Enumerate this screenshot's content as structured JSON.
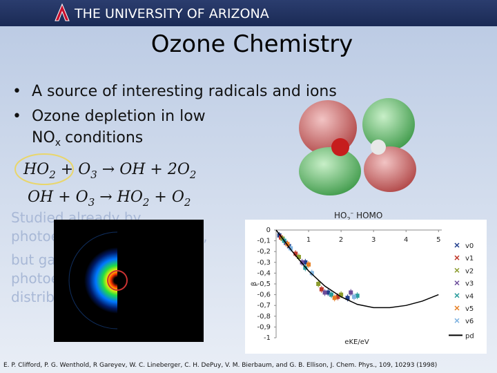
{
  "header": {
    "logo_text": "THE UNIVERSITY OF ARIZONA"
  },
  "title": "Ozone Chemistry",
  "bullets": [
    {
      "text": "A source of interesting radicals and ions"
    },
    {
      "line1": "Ozone depletion in low",
      "species": "NO",
      "subscript": "x",
      "tail": "conditions"
    }
  ],
  "equations": [
    [
      "HO",
      "2",
      " + O",
      "3",
      " → OH + 2O",
      "2"
    ],
    [
      "OH + O",
      "3",
      " → HO",
      "2",
      " + O",
      "2"
    ]
  ],
  "faded_paragraph": [
    "Studied already by",
    "photoelectron spectroscopy,",
    "but gas-phase",
    "photoelectron angular",
    "distributions"
  ],
  "orbital_label": {
    "main": "HO",
    "sub": "2",
    "sup": "–",
    "tail": "HOMO"
  },
  "citation": "E. P. Clifford, P. G. Wenthold, R Gareyev, W. C. Lineberger, C. H. DePuy, V. M. Bierbaum, and G. B. Ellison, J. Chem. Phys., 109, 10293 (1998)",
  "chart_data": {
    "type": "scatter",
    "x_label": "eKE/eV",
    "y_label": "β",
    "xlim": [
      0,
      5.1
    ],
    "ylim": [
      -1,
      0
    ],
    "xticks": [
      1,
      2,
      3,
      4,
      5
    ],
    "yticks": [
      0,
      {
        "value": -0.1,
        "label": "-0,1"
      },
      {
        "value": -0.2,
        "label": "-0,2"
      },
      {
        "value": -0.3,
        "label": "-0,3"
      },
      {
        "value": -0.4,
        "label": "-0,4"
      },
      {
        "value": -0.5,
        "label": "-0,5"
      },
      {
        "value": -0.6,
        "label": "-0,6"
      },
      {
        "value": -0.7,
        "label": "-0,7"
      },
      {
        "value": -0.8,
        "label": "-0,8"
      },
      {
        "value": -0.9,
        "label": "-0,9"
      },
      -1
    ],
    "legend": "right",
    "series": [
      {
        "name": "v0",
        "color": "#1f3d8c",
        "x": [
          0.1,
          0.4,
          0.9,
          1.6,
          2.2
        ],
        "values": [
          -0.05,
          -0.15,
          -0.3,
          -0.58,
          -0.63
        ]
      },
      {
        "name": "v1",
        "color": "#c0392b",
        "x": [
          0.15,
          0.6,
          1.4,
          1.9
        ],
        "values": [
          -0.07,
          -0.22,
          -0.55,
          -0.62
        ]
      },
      {
        "name": "v2",
        "color": "#8a9a2b",
        "x": [
          0.2,
          0.7,
          1.3,
          2.0
        ],
        "values": [
          -0.08,
          -0.25,
          -0.5,
          -0.6
        ]
      },
      {
        "name": "v3",
        "color": "#6b4c9a",
        "x": [
          0.3,
          0.8,
          1.5,
          2.3
        ],
        "values": [
          -0.12,
          -0.3,
          -0.58,
          -0.58
        ]
      },
      {
        "name": "v4",
        "color": "#2a9d9d",
        "x": [
          0.25,
          0.9,
          1.7,
          2.5
        ],
        "values": [
          -0.1,
          -0.35,
          -0.6,
          -0.61
        ]
      },
      {
        "name": "v5",
        "color": "#e67e22",
        "x": [
          0.35,
          1.0,
          1.8
        ],
        "values": [
          -0.13,
          -0.32,
          -0.63
        ]
      },
      {
        "name": "v6",
        "color": "#7fb3e0",
        "x": [
          0.45,
          1.1,
          2.4
        ],
        "values": [
          -0.17,
          -0.4,
          -0.62
        ]
      },
      {
        "name": "pd",
        "color": "#000000",
        "mode": "line",
        "x": [
          0,
          0.5,
          1,
          1.5,
          2,
          2.5,
          3,
          3.5,
          4,
          4.5,
          5
        ],
        "values": [
          0,
          -0.2,
          -0.38,
          -0.52,
          -0.62,
          -0.69,
          -0.72,
          -0.72,
          -0.7,
          -0.66,
          -0.6
        ]
      }
    ]
  }
}
